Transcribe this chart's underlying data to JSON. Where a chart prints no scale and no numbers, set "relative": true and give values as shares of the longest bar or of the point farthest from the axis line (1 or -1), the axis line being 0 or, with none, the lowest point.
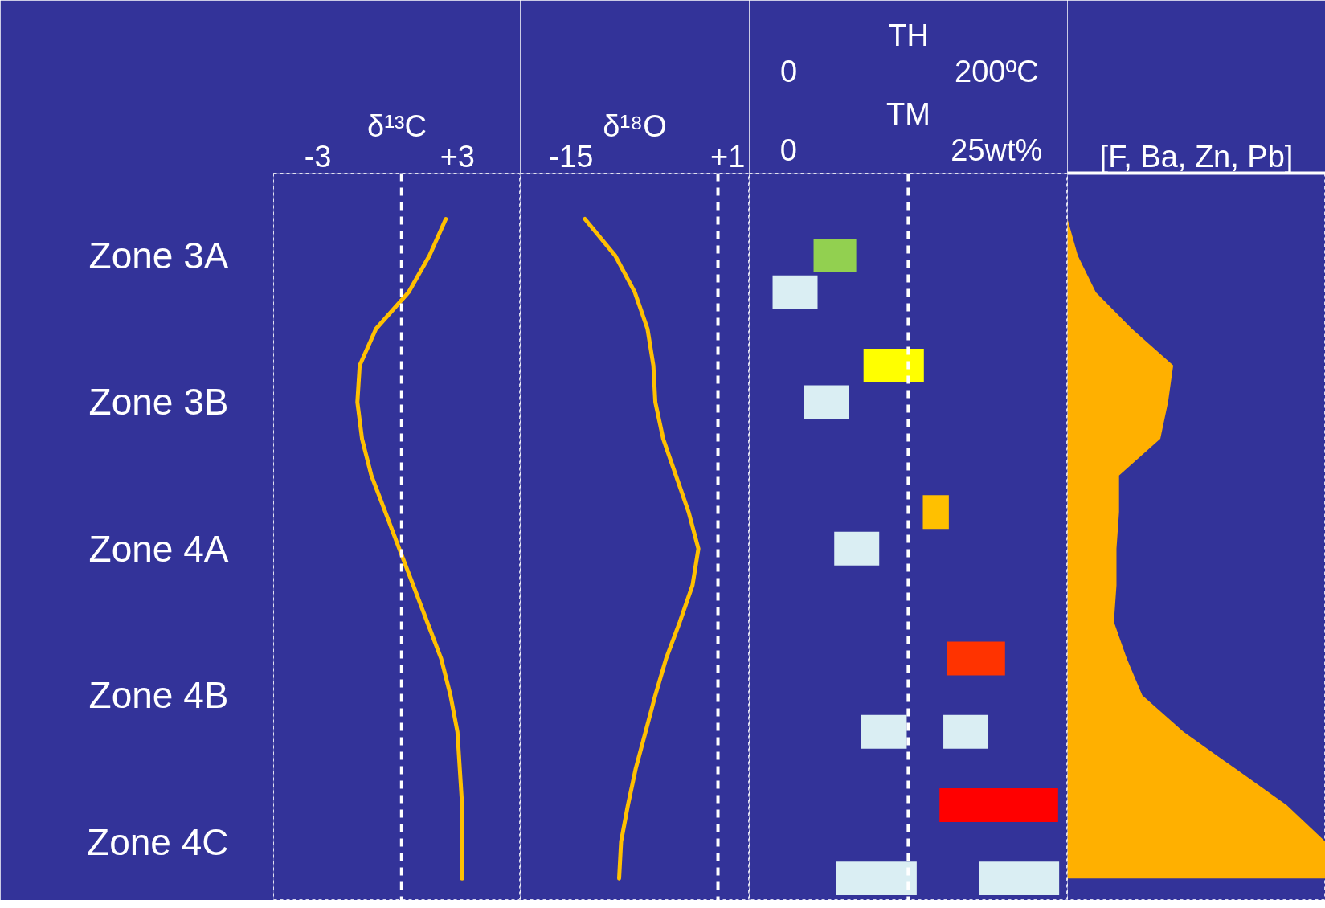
{
  "chart_data": [
    {
      "type": "line",
      "orientation": "horizontal",
      "xlabel": "δ¹³C",
      "categories": [
        null,
        null,
        "Zone 3A",
        null,
        null,
        null,
        "Zone 3B",
        null,
        null,
        null,
        "Zone 4A",
        null,
        null,
        null,
        "Zone 4B",
        null,
        null,
        null,
        "Zone 4C",
        null
      ],
      "xlim": [
        -4.9,
        5.7
      ],
      "xticks": [
        -3,
        {
          "value": 3,
          "label": "+3"
        }
      ],
      "series": [
        {
          "color": "#ffc000",
          "values": [
            null,
            2.5,
            1.8,
            0.9,
            -0.5,
            -1.2,
            -1.3,
            -1.1,
            -0.7,
            -0.1,
            0.5,
            1.1,
            1.7,
            2.3,
            2.7,
            3.0,
            3.1,
            3.2,
            3.2,
            3.2
          ]
        }
      ],
      "ref_lines": [
        {
          "axis": "x",
          "value": 0.6,
          "color": "#ffffff",
          "line_style": "dashed"
        }
      ],
      "line_style": "solid",
      "marker": "none"
    },
    {
      "type": "line",
      "orientation": "horizontal",
      "xlabel": "δ¹⁸O",
      "categories": [
        null,
        null,
        null,
        null,
        null,
        null,
        null,
        null,
        null,
        null,
        null,
        null,
        null,
        null,
        null,
        null,
        null,
        null,
        null,
        null
      ],
      "xlim": [
        -20.2,
        3.2
      ],
      "xticks": [
        -15,
        {
          "value": 1,
          "label": "+1"
        }
      ],
      "tick_labels": "x",
      "series": [
        {
          "color": "#ffc000",
          "values": [
            null,
            -13.6,
            -10.5,
            -8.5,
            -7.2,
            -6.6,
            -6.4,
            -5.6,
            -4.3,
            -3.0,
            -2.0,
            -2.6,
            -3.9,
            -5.3,
            -6.4,
            -7.4,
            -8.4,
            -9.2,
            -9.9,
            -10.1
          ]
        }
      ],
      "ref_lines": [
        {
          "axis": "x",
          "value": 0,
          "color": "#ffffff",
          "line_style": "dashed"
        }
      ],
      "line_style": "solid",
      "marker": "none"
    },
    {
      "type": "bar",
      "orientation": "horizontal",
      "xlabel": "TH",
      "x2label": "TM",
      "categories": [
        null,
        null,
        null,
        null,
        null,
        null,
        null,
        null,
        null,
        null,
        null,
        null,
        null,
        null,
        null,
        null,
        null,
        null,
        null,
        null
      ],
      "xlim": [
        -37.8,
        268
      ],
      "xticks": [
        0,
        {
          "value": 200,
          "label": "200ºC"
        }
      ],
      "x2lim": [
        -4.7,
        33.5
      ],
      "x2ticks": [
        0,
        {
          "value": 25,
          "label": "25wt%"
        }
      ],
      "tick_labels": "x",
      "series": [
        {
          "colors": [
            null,
            null,
            "#92d050",
            null,
            null,
            "#ffff00",
            null,
            null,
            null,
            "#ffc000",
            null,
            null,
            null,
            "#ff3300",
            null,
            null,
            null,
            "#ff0000",
            null,
            null
          ],
          "base": [
            null,
            null,
            24,
            null,
            null,
            72,
            null,
            null,
            null,
            129,
            null,
            null,
            null,
            152,
            null,
            null,
            null,
            145,
            null,
            null
          ],
          "values": [
            null,
            null,
            41,
            null,
            null,
            58,
            null,
            null,
            null,
            25,
            null,
            null,
            null,
            56,
            null,
            null,
            null,
            114,
            null,
            null
          ]
        },
        {
          "axis": "x2",
          "color": "#daeef3",
          "base": [
            null,
            null,
            null,
            -1.9,
            null,
            null,
            1.9,
            null,
            null,
            null,
            5.5,
            null,
            null,
            null,
            null,
            8.7,
            null,
            null,
            null,
            5.7
          ],
          "values": [
            null,
            null,
            null,
            5.4,
            null,
            null,
            5.4,
            null,
            null,
            null,
            5.4,
            null,
            null,
            null,
            null,
            5.5,
            null,
            null,
            null,
            9.7
          ]
        },
        {
          "axis": "x2",
          "color": "#daeef3",
          "base": [
            null,
            null,
            null,
            null,
            null,
            null,
            null,
            null,
            null,
            null,
            null,
            null,
            null,
            null,
            null,
            18.6,
            null,
            null,
            null,
            22.9
          ],
          "values": [
            null,
            null,
            null,
            null,
            null,
            null,
            null,
            null,
            null,
            null,
            null,
            null,
            null,
            null,
            null,
            5.4,
            null,
            null,
            null,
            9.6
          ]
        }
      ],
      "ref_lines": [
        {
          "axis": "x",
          "value": 115,
          "color": "#ffffff",
          "line_style": "dashed"
        }
      ]
    },
    {
      "type": "area",
      "orientation": "horizontal",
      "relative": true,
      "xlabel": "[F, Ba, Zn, Pb]",
      "categories": [
        null,
        null,
        null,
        null,
        null,
        null,
        null,
        null,
        null,
        null,
        null,
        null,
        null,
        null,
        null,
        null,
        null,
        null,
        null,
        null
      ],
      "tick_labels": false,
      "series": [
        {
          "color": "#ffb000",
          "values": [
            null,
            0.0,
            0.04,
            0.11,
            0.25,
            0.41,
            0.39,
            0.36,
            0.2,
            0.2,
            0.19,
            0.19,
            0.18,
            0.23,
            0.29,
            0.45,
            0.65,
            0.85,
            1.0,
            1.0
          ]
        }
      ]
    }
  ]
}
